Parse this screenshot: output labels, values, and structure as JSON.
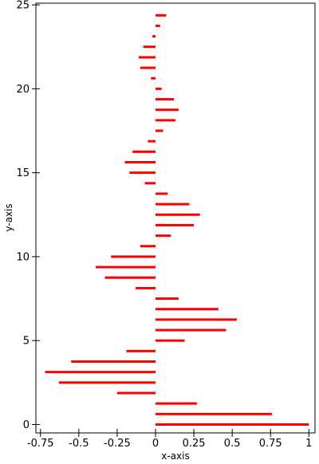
{
  "chart_data": {
    "type": "bar",
    "orientation": "horizontal",
    "xlabel": "x-axis",
    "ylabel": "y-axis",
    "xlim": [
      -0.78,
      1.04
    ],
    "ylim": [
      -0.5,
      25.1
    ],
    "x_ticks": [
      -0.75,
      -0.5,
      -0.25,
      0,
      0.25,
      0.5,
      0.75,
      1
    ],
    "x_tick_labels": [
      "-0.75",
      "-0.5",
      "-0.25",
      "0",
      "0.25",
      "0.5",
      "0.75",
      "1"
    ],
    "y_ticks": [
      0,
      5,
      10,
      15,
      20,
      25
    ],
    "y_tick_labels": [
      "0",
      "5",
      "10",
      "15",
      "20",
      "25"
    ],
    "grid": false,
    "bar_color": "#ff0000",
    "series": [
      {
        "y": [
          0,
          0.625,
          1.25,
          1.875,
          2.5,
          3.125,
          3.75,
          4.375,
          5,
          5.625,
          6.25,
          6.875,
          7.5,
          8.125,
          8.75,
          9.375,
          10,
          10.625,
          11.25,
          11.875,
          12.5,
          13.125,
          13.75,
          14.375,
          15,
          15.625,
          16.25,
          16.875,
          17.5,
          18.125,
          18.75,
          19.375,
          20,
          20.625,
          21.25,
          21.875,
          22.5,
          23.125,
          23.75,
          24.375
        ],
        "x": [
          1.0,
          0.76,
          0.27,
          -0.25,
          -0.63,
          -0.72,
          -0.55,
          -0.19,
          0.19,
          0.46,
          0.53,
          0.41,
          0.15,
          -0.13,
          -0.33,
          -0.39,
          -0.29,
          -0.1,
          0.1,
          0.25,
          0.29,
          0.22,
          0.08,
          -0.07,
          -0.17,
          -0.2,
          -0.15,
          -0.05,
          0.05,
          0.13,
          0.15,
          0.12,
          0.04,
          -0.03,
          -0.1,
          -0.11,
          -0.08,
          -0.02,
          0.03,
          0.07
        ]
      }
    ]
  }
}
